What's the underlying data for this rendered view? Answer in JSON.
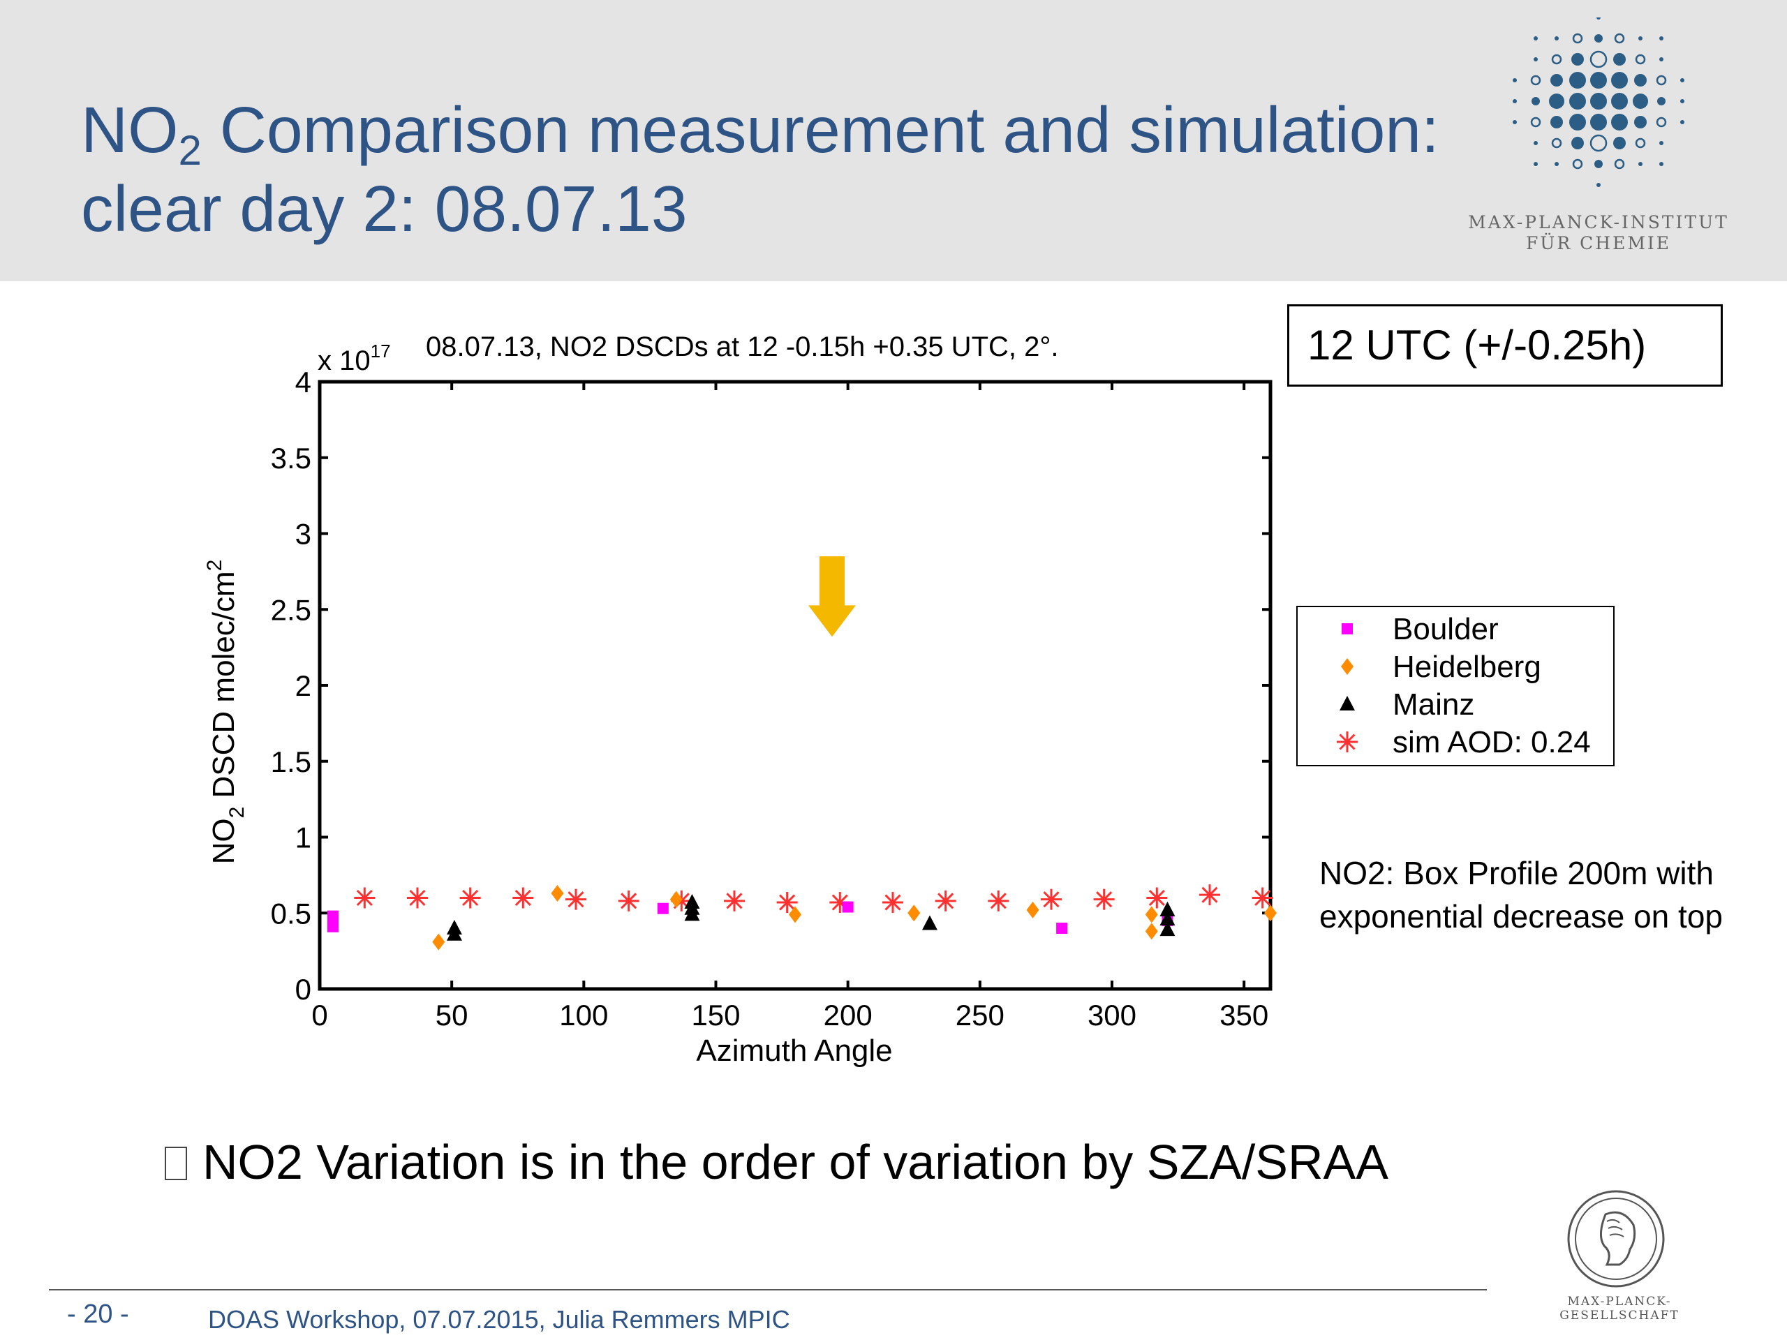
{
  "header": {
    "title_prefix": "NO",
    "title_sub": "2",
    "title_line1_rest": " Comparison measurement and simulation:",
    "title_line2": "clear day 2: 08.07.13",
    "logo_line1": "MAX-PLANCK-INSTITUT",
    "logo_line2": "FÜR CHEMIE"
  },
  "chart_data": {
    "type": "scatter",
    "title": "08.07.13, NO2 DSCDs at 12 -0.15h +0.35 UTC, 2°.",
    "y_scale_label": "x 10",
    "y_scale_exp": "17",
    "xlabel": "Azimuth Angle",
    "ylabel_main": "NO",
    "ylabel_sub": "2",
    "ylabel_rest": " DSCD molec/cm",
    "ylabel_sup": "2",
    "xlim": [
      0,
      360
    ],
    "ylim": [
      0,
      4
    ],
    "x_ticks": [
      "0",
      "50",
      "100",
      "150",
      "200",
      "250",
      "300",
      "350"
    ],
    "y_ticks": [
      "0",
      "0.5",
      "1",
      "1.5",
      "2",
      "2.5",
      "3",
      "3.5",
      "4"
    ],
    "legend_position": "right, outside plot",
    "series": [
      {
        "name": "Boulder",
        "marker": "square",
        "color": "#ff00ff",
        "x": [
          5,
          5,
          130,
          200,
          281,
          321
        ],
        "y": [
          0.48,
          0.41,
          0.53,
          0.54,
          0.4,
          0.45
        ]
      },
      {
        "name": "Heidelberg",
        "marker": "diamond",
        "color": "#ff8c00",
        "x": [
          45,
          90,
          135,
          180,
          225,
          270,
          315,
          315,
          360
        ],
        "y": [
          0.31,
          0.63,
          0.59,
          0.49,
          0.5,
          0.52,
          0.49,
          0.38,
          0.5
        ]
      },
      {
        "name": "Mainz",
        "marker": "triangle",
        "color": "#000000",
        "x": [
          51,
          51,
          141,
          141,
          141,
          231,
          321,
          321,
          321
        ],
        "y": [
          0.4,
          0.36,
          0.57,
          0.53,
          0.49,
          0.43,
          0.52,
          0.46,
          0.39
        ]
      },
      {
        "name": "sim AOD: 0.24",
        "marker": "asterisk",
        "color": "#ff3030",
        "x": [
          17,
          37,
          57,
          77,
          97,
          117,
          137,
          157,
          177,
          197,
          217,
          237,
          257,
          277,
          297,
          317,
          337,
          357
        ],
        "y": [
          0.6,
          0.6,
          0.6,
          0.6,
          0.59,
          0.58,
          0.58,
          0.58,
          0.57,
          0.57,
          0.57,
          0.58,
          0.58,
          0.59,
          0.59,
          0.6,
          0.62,
          0.6
        ]
      }
    ],
    "annotation_arrow": {
      "x": 194,
      "y_from": 2.85,
      "y_to": 2.32,
      "color": "#f5b800"
    }
  },
  "utc_box": "12 UTC (+/-0.25h)",
  "note": "NO2: Box Profile 200m with exponential decrease on top",
  "bullet": "NO2 Variation is in the order of variation by SZA/SRAA",
  "footer": {
    "page": "- 20 -",
    "text": "DOAS Workshop, 07.07.2015, Julia Remmers MPIC",
    "mpg": "MAX-PLANCK-GESELLSCHAFT"
  },
  "colors": {
    "title": "#2e5486",
    "header_bg": "#e4e4e4",
    "logo_blue": "#2b5d85"
  }
}
